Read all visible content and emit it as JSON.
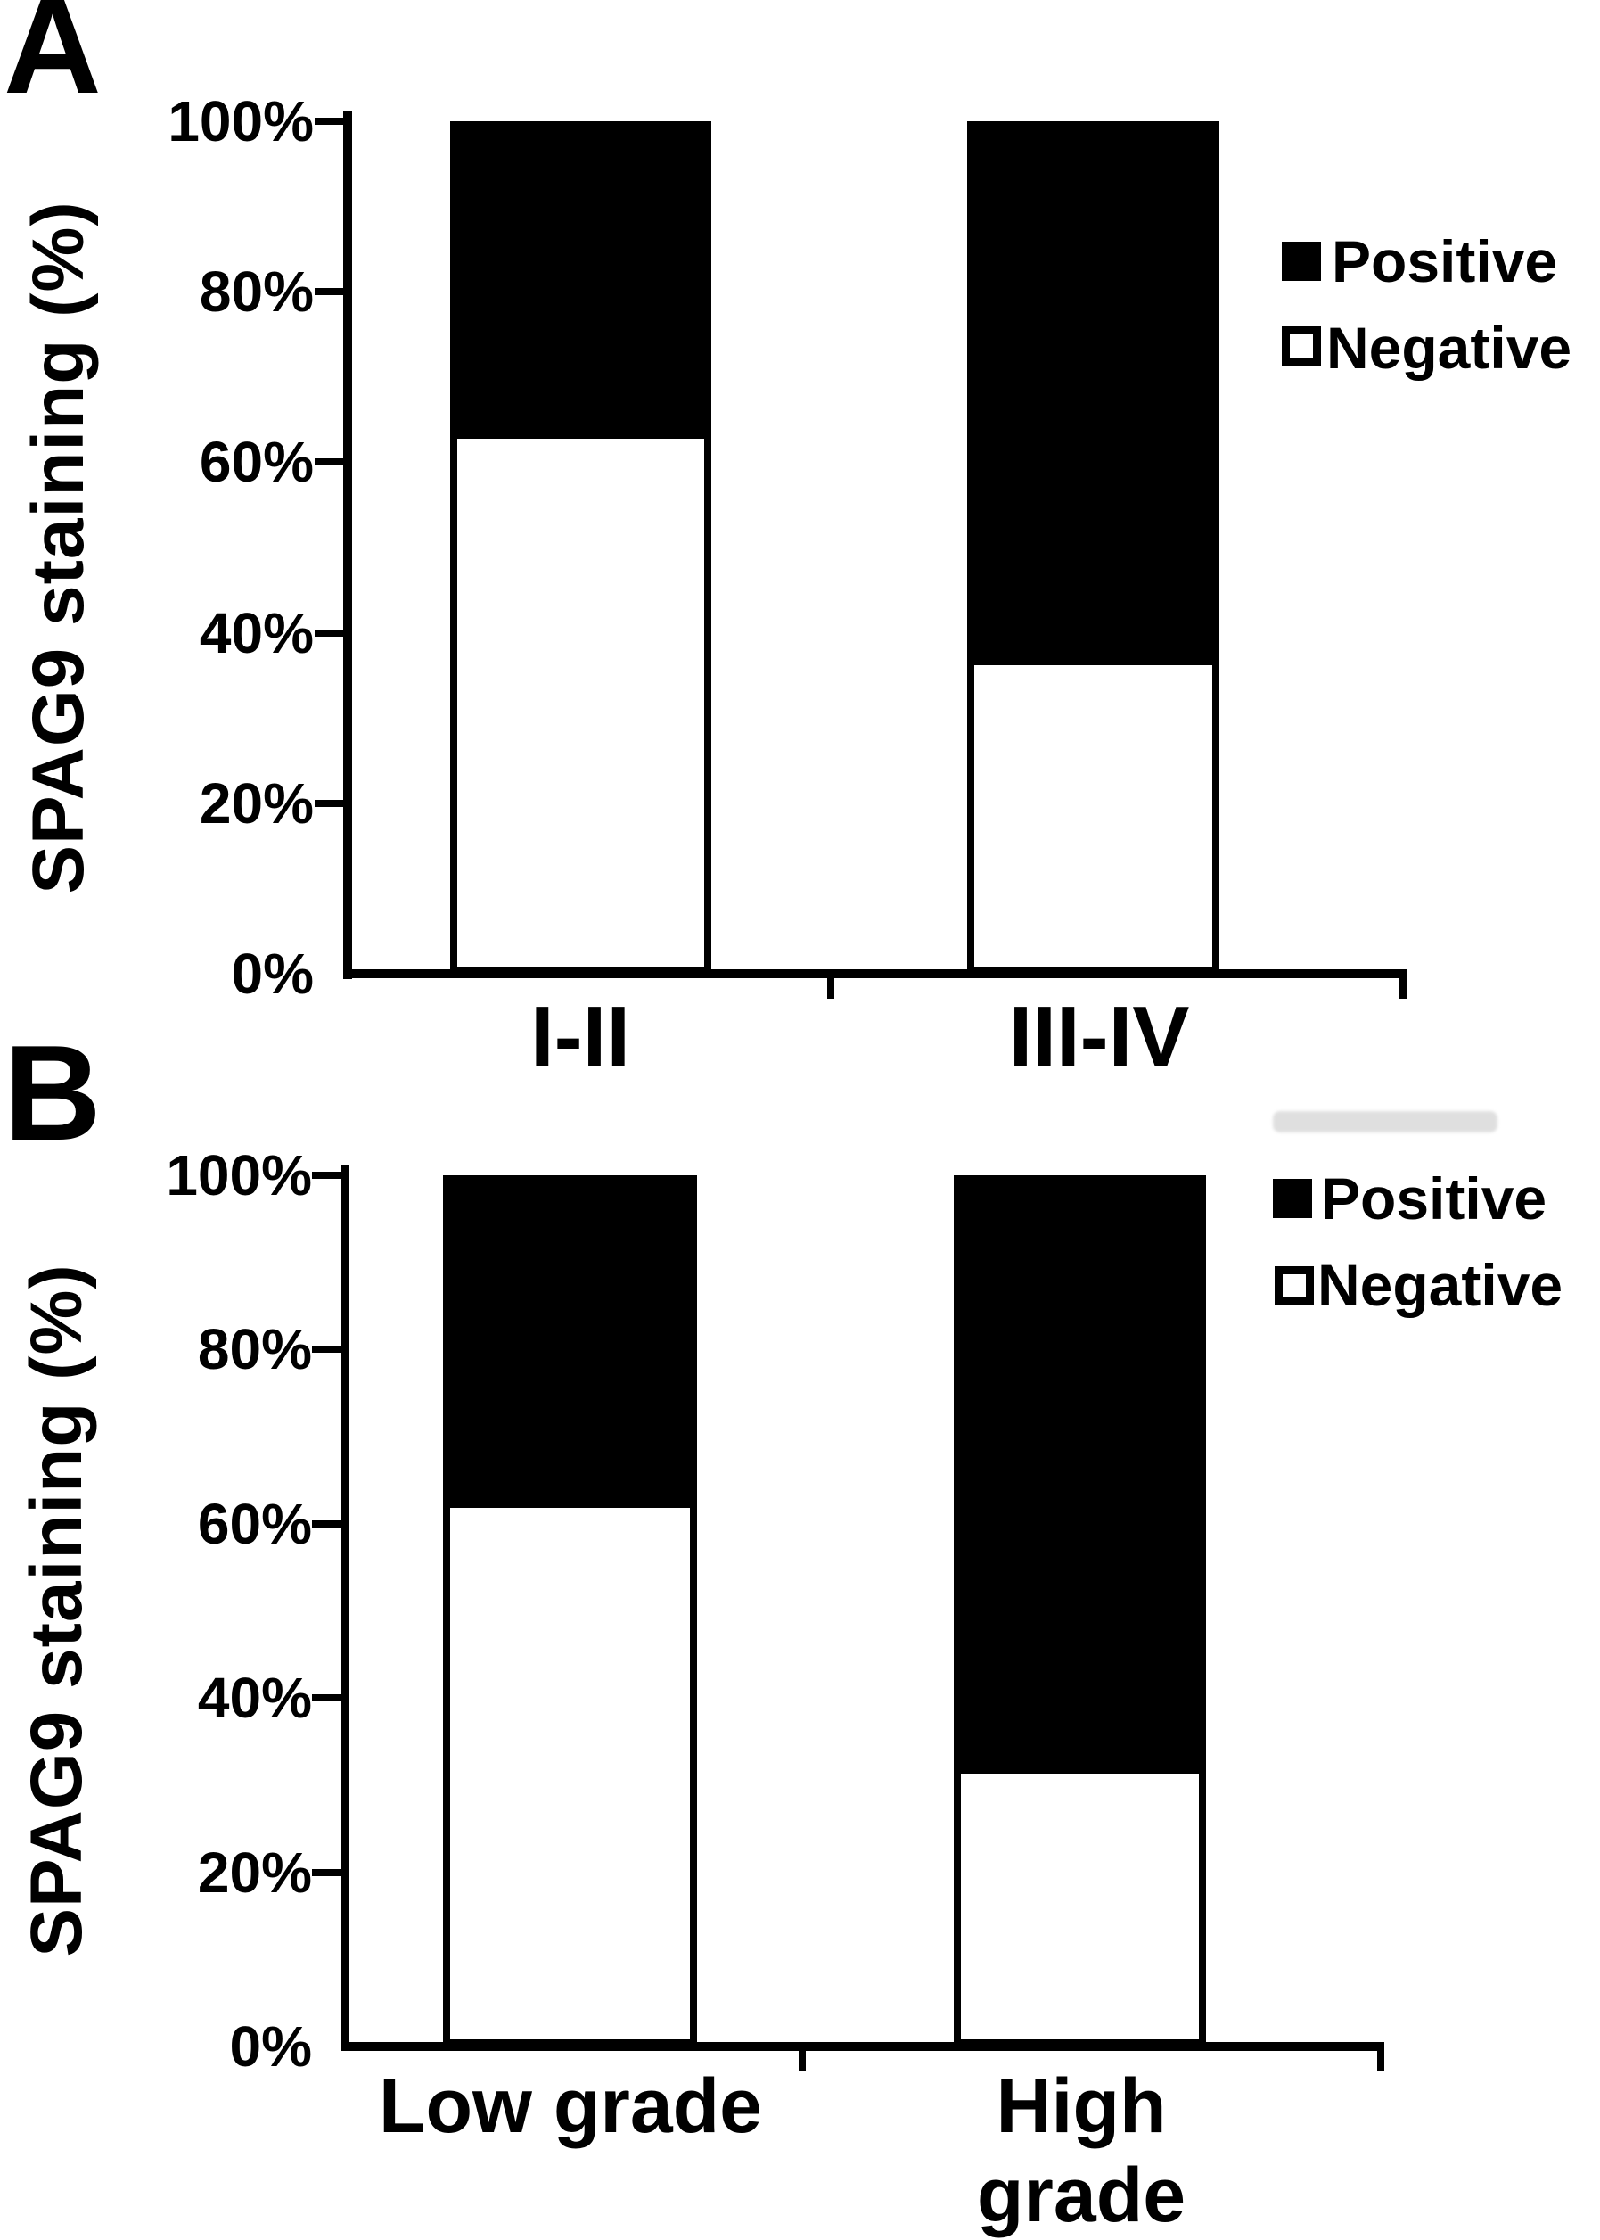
{
  "figure": {
    "panel_labels": [
      "A",
      "B"
    ],
    "colors": {
      "positive": "#000000",
      "negative": "#ffffff",
      "axis": "#000000",
      "background": "#ffffff",
      "artifact_gray": "#c6c6c6"
    }
  },
  "chart_data": [
    {
      "type": "bar",
      "subtype": "stacked-percentage",
      "panel": "A",
      "categories": [
        "I-II",
        "III-IV"
      ],
      "series": [
        {
          "name": "Positive",
          "color": "#000000",
          "values": [
            37,
            64
          ]
        },
        {
          "name": "Negative",
          "color": "#ffffff",
          "values": [
            63,
            36
          ]
        }
      ],
      "ylabel": "SPAG9 staining (%)",
      "ylim": [
        0,
        100
      ],
      "yticks": [
        "0%",
        "20%",
        "40%",
        "60%",
        "80%",
        "100%"
      ],
      "legend_position": "upper-right",
      "grid": false
    },
    {
      "type": "bar",
      "subtype": "stacked-percentage",
      "panel": "B",
      "categories": [
        "Low grade",
        "High grade"
      ],
      "series": [
        {
          "name": "Positive",
          "color": "#000000",
          "values": [
            38,
            69
          ]
        },
        {
          "name": "Negative",
          "color": "#ffffff",
          "values": [
            62,
            31
          ]
        }
      ],
      "ylabel": "SPAG9 staining (%)",
      "ylim": [
        0,
        100
      ],
      "yticks": [
        "0%",
        "20%",
        "40%",
        "60%",
        "80%",
        "100%"
      ],
      "legend_position": "upper-right",
      "grid": false
    }
  ]
}
